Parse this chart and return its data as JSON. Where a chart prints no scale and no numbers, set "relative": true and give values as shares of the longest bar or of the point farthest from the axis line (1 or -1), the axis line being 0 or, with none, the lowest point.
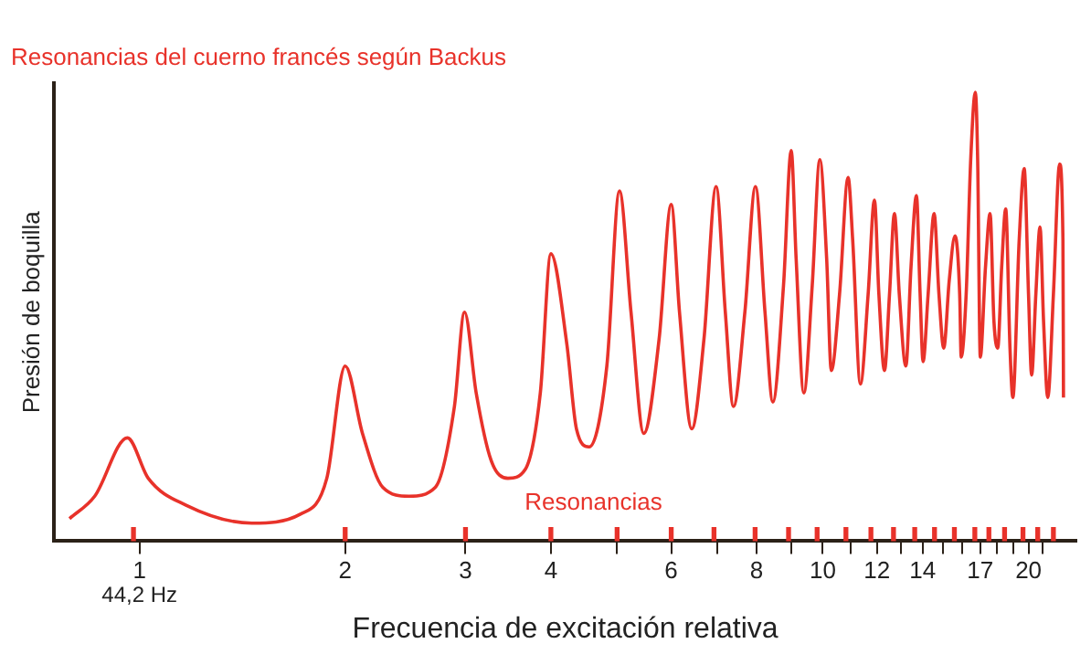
{
  "chart_data": {
    "type": "line",
    "title": "Resonancias del cuerno francés según Backus",
    "xlabel": "Frecuencia de excitación relativa",
    "ylabel": "Presión de boquilla",
    "relative": true,
    "log": "x",
    "xlim": [
      0.75,
      23.5
    ],
    "xticks": [
      1,
      2,
      3,
      4,
      {
        "value": 5,
        "label": null
      },
      6,
      {
        "value": 7,
        "label": null
      },
      8,
      {
        "value": 9,
        "label": null
      },
      10,
      {
        "value": 11,
        "label": null
      },
      12,
      {
        "value": 13,
        "label": null
      },
      14,
      {
        "value": 15,
        "label": null
      },
      {
        "value": 16,
        "label": null
      },
      17,
      {
        "value": 18,
        "label": null
      },
      {
        "value": 19,
        "label": null
      },
      20,
      {
        "value": 21,
        "label": null
      }
    ],
    "tick_labels": "x",
    "annotations": [
      "44,2 Hz"
    ],
    "series": [
      {
        "color": "#e8322a",
        "x": [
          0.79,
          0.86,
          0.96,
          1.03,
          1.17,
          1.46,
          1.72,
          1.88,
          2.0,
          2.12,
          2.27,
          2.48,
          2.71,
          2.89,
          2.99,
          3.11,
          3.27,
          3.46,
          3.67,
          3.86,
          4.0,
          4.22,
          4.36,
          4.55,
          4.83,
          5.04,
          5.24,
          5.47,
          5.76,
          6.0,
          6.17,
          6.43,
          6.7,
          6.98,
          7.2,
          7.4,
          7.69,
          7.97,
          8.23,
          8.45,
          8.76,
          8.99,
          9.14,
          9.38,
          9.65,
          9.9,
          10.13,
          10.29,
          10.58,
          10.89,
          11.06,
          11.35,
          11.65,
          11.9,
          12.08,
          12.31,
          12.52,
          12.73,
          12.94,
          13.23,
          13.46,
          13.71,
          13.88,
          14.02,
          14.26,
          14.55,
          14.79,
          15.03,
          15.31,
          15.61,
          15.86,
          15.94,
          16.21,
          16.46,
          16.72,
          16.85,
          17.0,
          17.3,
          17.57,
          17.8,
          18.03,
          18.27,
          18.52,
          18.79,
          18.97,
          19.38,
          19.71,
          20.0,
          20.21,
          20.5,
          20.79,
          21.04,
          21.34,
          21.75,
          22.21,
          22.46,
          22.5
        ],
        "values": [
          0.05,
          0.1,
          0.23,
          0.14,
          0.08,
          0.04,
          0.06,
          0.14,
          0.39,
          0.24,
          0.12,
          0.1,
          0.12,
          0.3,
          0.51,
          0.33,
          0.18,
          0.14,
          0.16,
          0.33,
          0.64,
          0.44,
          0.25,
          0.21,
          0.39,
          0.78,
          0.51,
          0.24,
          0.45,
          0.75,
          0.51,
          0.25,
          0.45,
          0.79,
          0.51,
          0.3,
          0.51,
          0.79,
          0.51,
          0.31,
          0.57,
          0.87,
          0.63,
          0.33,
          0.57,
          0.85,
          0.63,
          0.38,
          0.55,
          0.81,
          0.67,
          0.35,
          0.55,
          0.76,
          0.55,
          0.38,
          0.55,
          0.73,
          0.55,
          0.39,
          0.61,
          0.77,
          0.55,
          0.4,
          0.55,
          0.73,
          0.55,
          0.43,
          0.58,
          0.68,
          0.55,
          0.41,
          0.55,
          0.85,
          1,
          0.85,
          0.41,
          0.61,
          0.73,
          0.49,
          0.43,
          0.61,
          0.74,
          0.43,
          0.32,
          0.67,
          0.83,
          0.55,
          0.37,
          0.55,
          0.7,
          0.49,
          0.32,
          0.55,
          0.84,
          0.67,
          0.32
        ]
      },
      {
        "type": "bar",
        "name": "Resonancias",
        "color": "#e8322a",
        "x": [
          0.98,
          2,
          3,
          4,
          5,
          6,
          6.93,
          7.96,
          8.91,
          9.81,
          10.81,
          11.76,
          12.69,
          13.63,
          14.57,
          15.58,
          16.69,
          17.5,
          18.45,
          19.63,
          20.63,
          21.75
        ],
        "values": [
          0.03,
          0.03,
          0.03,
          0.03,
          0.03,
          0.03,
          0.03,
          0.03,
          0.03,
          0.03,
          0.03,
          0.03,
          0.03,
          0.03,
          0.03,
          0.03,
          0.03,
          0.03,
          0.03,
          0.03,
          0.03,
          0.03
        ]
      }
    ]
  }
}
